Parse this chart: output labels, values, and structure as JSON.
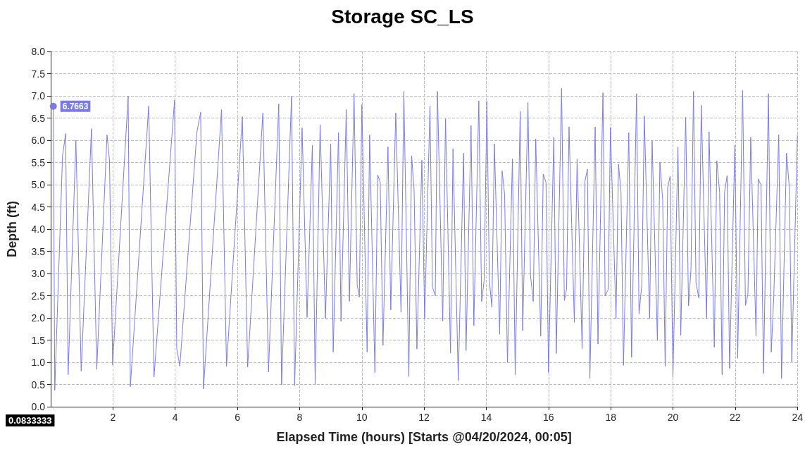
{
  "chart_data": {
    "type": "line",
    "title": "Storage SC_LS",
    "xlabel": "Elapsed Time (hours) [Starts @04/20/2024, 00:05]",
    "ylabel": "Depth (ft)",
    "xlim": [
      0,
      24
    ],
    "xticks": [
      2,
      4,
      6,
      8,
      10,
      12,
      14,
      16,
      18,
      20,
      22,
      24
    ],
    "ylim": [
      0,
      8
    ],
    "yticks": [
      {
        "value": 0,
        "label": "0.0"
      },
      {
        "value": 0.5,
        "label": "0.5"
      },
      {
        "value": 1,
        "label": "1.0"
      },
      {
        "value": 1.5,
        "label": "1.5"
      },
      {
        "value": 2,
        "label": "2.0"
      },
      {
        "value": 2.5,
        "label": "2.5"
      },
      {
        "value": 3,
        "label": "3.0"
      },
      {
        "value": 3.5,
        "label": "3.5"
      },
      {
        "value": 4,
        "label": "4.0"
      },
      {
        "value": 4.5,
        "label": "4.5"
      },
      {
        "value": 5,
        "label": "5.0"
      },
      {
        "value": 5.5,
        "label": "5.5"
      },
      {
        "value": 6,
        "label": "6.0"
      },
      {
        "value": 6.5,
        "label": "6.5"
      },
      {
        "value": 7,
        "label": "7.0"
      },
      {
        "value": 7.5,
        "label": "7.5"
      },
      {
        "value": 8,
        "label": "8.0"
      }
    ],
    "grid": true,
    "marker": "none",
    "line_style": "solid",
    "annotations": [
      {
        "text": "6.7663",
        "x": 0.0833333,
        "y": 6.7663
      },
      "0.0833333"
    ],
    "series": [
      {
        "color": "#7b7be8",
        "x": [
          0.0833333,
          0.13,
          0.38,
          0.48,
          0.56,
          0.81,
          0.98,
          1.31,
          1.48,
          1.81,
          1.89,
          1.99,
          2.49,
          2.56,
          3.15,
          3.32,
          3.98,
          4.05,
          4.15,
          4.7,
          4.82,
          4.91,
          5.49,
          5.65,
          6.16,
          6.33,
          6.82,
          7.0,
          7.33,
          7.42,
          7.74,
          7.84,
          8.08,
          8.24,
          8.41,
          8.5,
          8.66,
          8.83,
          9.0,
          9.08,
          9.25,
          9.33,
          9.5,
          9.6,
          9.75,
          9.85,
          9.92,
          10.0,
          10.17,
          10.25,
          10.42,
          10.51,
          10.59,
          10.68,
          10.84,
          10.93,
          11.09,
          11.26,
          11.35,
          11.51,
          11.6,
          11.68,
          11.77,
          11.93,
          12.02,
          12.19,
          12.27,
          12.36,
          12.43,
          12.6,
          12.69,
          12.85,
          12.93,
          13.1,
          13.27,
          13.35,
          13.51,
          13.6,
          13.76,
          13.85,
          13.93,
          14.02,
          14.1,
          14.18,
          14.26,
          14.43,
          14.51,
          14.59,
          14.68,
          14.84,
          14.93,
          15.09,
          15.17,
          15.34,
          15.42,
          15.51,
          15.59,
          15.75,
          15.83,
          15.92,
          16.0,
          16.17,
          16.25,
          16.42,
          16.51,
          16.58,
          16.66,
          16.83,
          16.92,
          17.08,
          17.17,
          17.25,
          17.33,
          17.5,
          17.59,
          17.75,
          17.82,
          17.92,
          17.99,
          18.17,
          18.25,
          18.33,
          18.41,
          18.58,
          18.67,
          18.83,
          18.91,
          19.0,
          19.08,
          19.25,
          19.33,
          19.5,
          19.58,
          19.67,
          19.75,
          19.83,
          19.91,
          20.0,
          20.16,
          20.25,
          20.41,
          20.5,
          20.58,
          20.66,
          20.74,
          20.83,
          20.91,
          21.08,
          21.16,
          21.33,
          21.41,
          21.5,
          21.58,
          21.66,
          21.74,
          21.82,
          21.99,
          22.08,
          22.24,
          22.33,
          22.41,
          22.5,
          22.67,
          22.74,
          22.83,
          22.91,
          23.07,
          23.16,
          23.24,
          23.4,
          23.49,
          23.65,
          23.74,
          23.82,
          24.0
        ],
        "values": [
          6.77,
          0.37,
          5.65,
          6.15,
          0.72,
          6.0,
          0.8,
          6.26,
          0.84,
          6.12,
          5.54,
          0.94,
          7.0,
          0.45,
          6.77,
          0.67,
          6.9,
          1.32,
          0.91,
          6.19,
          6.63,
          0.4,
          6.69,
          0.91,
          6.53,
          0.89,
          6.62,
          0.78,
          6.82,
          0.49,
          6.99,
          0.48,
          6.28,
          2.01,
          5.89,
          0.5,
          6.35,
          1.99,
          5.92,
          1.23,
          6.17,
          1.92,
          6.69,
          2.37,
          7.05,
          2.75,
          2.47,
          6.8,
          1.23,
          6.12,
          0.77,
          5.22,
          5.06,
          1.38,
          5.85,
          2.18,
          6.62,
          2.13,
          7.1,
          0.68,
          5.65,
          4.88,
          1.3,
          5.55,
          1.98,
          6.77,
          2.69,
          2.5,
          7.1,
          1.93,
          6.48,
          1.21,
          5.81,
          0.59,
          5.71,
          1.26,
          6.33,
          1.83,
          6.89,
          2.37,
          2.83,
          6.88,
          2.83,
          2.24,
          5.92,
          1.63,
          5.31,
          4.77,
          1.0,
          5.58,
          0.72,
          6.65,
          1.71,
          6.85,
          2.97,
          2.37,
          6.03,
          1.59,
          5.24,
          5.05,
          0.77,
          6.07,
          1.2,
          7.17,
          2.39,
          2.64,
          6.3,
          1.9,
          5.58,
          1.31,
          5.07,
          5.35,
          0.64,
          6.3,
          1.41,
          7.07,
          2.5,
          2.64,
          6.29,
          1.98,
          5.46,
          4.83,
          0.93,
          6.17,
          1.11,
          7.05,
          2.09,
          2.75,
          6.55,
          1.98,
          5.99,
          1.49,
          5.51,
          4.66,
          0.91,
          4.94,
          5.19,
          0.67,
          5.85,
          1.61,
          6.52,
          2.27,
          3.1,
          7.1,
          2.8,
          2.45,
          6.79,
          1.98,
          6.19,
          1.34,
          5.54,
          4.83,
          0.72,
          4.83,
          5.2,
          0.86,
          5.89,
          1.09,
          7.12,
          2.28,
          2.53,
          6.07,
          1.59,
          5.13,
          4.99,
          0.75,
          7.05,
          1.23,
          2.47,
          6.12,
          0.64,
          5.71,
          4.94,
          1.01,
          6.11
        ]
      }
    ]
  }
}
